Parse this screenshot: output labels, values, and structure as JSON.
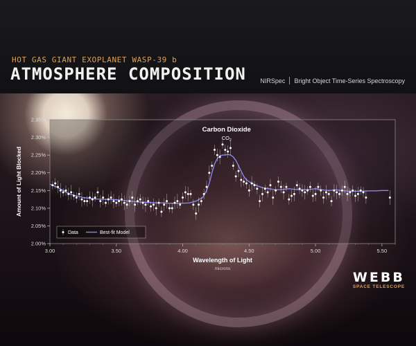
{
  "header": {
    "sup_title": "HOT GAS GIANT EXOPLANET WASP-39 b",
    "main_title": "ATMOSPHERE COMPOSITION",
    "instrument": "NIRSpec",
    "mode": "Bright Object Time-Series Spectroscopy"
  },
  "logo": {
    "name": "WEBB",
    "sub": "SPACE TELESCOPE"
  },
  "colors": {
    "accent": "#e0a054",
    "model_line": "#8a86e8",
    "data_points": "#ffffff",
    "axis_text": "#dddddd"
  },
  "chart_data": {
    "type": "scatter",
    "title": "",
    "xlabel": "Wavelength of Light",
    "xunit": "microns",
    "ylabel": "Amount of Light Blocked",
    "xlim": [
      3.0,
      5.6
    ],
    "ylim": [
      2.0,
      2.35
    ],
    "x_ticks": [
      "3.00",
      "3.50",
      "4.00",
      "4.50",
      "5.00",
      "5.50"
    ],
    "y_ticks": [
      "2.00%",
      "2.05%",
      "2.10%",
      "2.15%",
      "2.20%",
      "2.25%",
      "2.30%",
      "2.35%"
    ],
    "annotation": {
      "label": "Carbon Dioxide",
      "formula": "CO",
      "subscript": "2",
      "x": 4.33
    },
    "legend": {
      "placement": "bottom-left",
      "data_label": "Data",
      "model_label": "Best-fit Model"
    },
    "series": [
      {
        "name": "Data",
        "x": [
          3.02,
          3.04,
          3.06,
          3.08,
          3.1,
          3.12,
          3.14,
          3.16,
          3.18,
          3.2,
          3.22,
          3.24,
          3.26,
          3.28,
          3.3,
          3.32,
          3.34,
          3.36,
          3.38,
          3.4,
          3.42,
          3.44,
          3.46,
          3.48,
          3.5,
          3.52,
          3.54,
          3.56,
          3.58,
          3.6,
          3.62,
          3.64,
          3.66,
          3.68,
          3.7,
          3.72,
          3.74,
          3.76,
          3.78,
          3.8,
          3.82,
          3.84,
          3.86,
          3.88,
          3.9,
          3.92,
          3.94,
          3.96,
          3.98,
          4.0,
          4.02,
          4.04,
          4.06,
          4.08,
          4.1,
          4.12,
          4.14,
          4.16,
          4.18,
          4.2,
          4.22,
          4.24,
          4.26,
          4.28,
          4.3,
          4.32,
          4.34,
          4.36,
          4.38,
          4.4,
          4.42,
          4.44,
          4.46,
          4.48,
          4.5,
          4.52,
          4.54,
          4.56,
          4.58,
          4.6,
          4.62,
          4.64,
          4.66,
          4.68,
          4.7,
          4.72,
          4.74,
          4.76,
          4.78,
          4.8,
          4.82,
          4.84,
          4.86,
          4.88,
          4.9,
          4.92,
          4.94,
          4.96,
          4.98,
          5.0,
          5.02,
          5.04,
          5.06,
          5.08,
          5.1,
          5.12,
          5.14,
          5.16,
          5.18,
          5.2,
          5.22,
          5.24,
          5.26,
          5.28,
          5.3,
          5.32,
          5.34,
          5.36,
          5.38,
          5.56
        ],
        "y": [
          2.165,
          2.17,
          2.16,
          2.15,
          2.145,
          2.15,
          2.14,
          2.145,
          2.135,
          2.13,
          2.14,
          2.125,
          2.12,
          2.12,
          2.13,
          2.125,
          2.13,
          2.145,
          2.12,
          2.13,
          2.115,
          2.125,
          2.13,
          2.12,
          2.115,
          2.12,
          2.125,
          2.115,
          2.11,
          2.12,
          2.13,
          2.11,
          2.12,
          2.125,
          2.115,
          2.11,
          2.12,
          2.105,
          2.11,
          2.1,
          2.115,
          2.09,
          2.11,
          2.12,
          2.1,
          2.1,
          2.115,
          2.12,
          2.11,
          2.13,
          2.145,
          2.14,
          2.14,
          2.11,
          2.085,
          2.11,
          2.12,
          2.14,
          2.16,
          2.2,
          2.22,
          2.265,
          2.25,
          2.245,
          2.28,
          2.265,
          2.26,
          2.27,
          2.22,
          2.19,
          2.205,
          2.18,
          2.175,
          2.17,
          2.15,
          2.17,
          2.165,
          2.155,
          2.12,
          2.14,
          2.155,
          2.145,
          2.165,
          2.13,
          2.15,
          2.175,
          2.16,
          2.145,
          2.16,
          2.125,
          2.135,
          2.14,
          2.165,
          2.155,
          2.15,
          2.145,
          2.15,
          2.16,
          2.135,
          2.14,
          2.16,
          2.15,
          2.13,
          2.145,
          2.14,
          2.12,
          2.15,
          2.145,
          2.14,
          2.15,
          2.16,
          2.14,
          2.145,
          2.15,
          2.135,
          2.14,
          2.15,
          2.145,
          2.13,
          2.13
        ]
      },
      {
        "name": "Best-fit Model",
        "x": [
          3.0,
          3.05,
          3.1,
          3.15,
          3.2,
          3.25,
          3.3,
          3.35,
          3.4,
          3.45,
          3.5,
          3.55,
          3.6,
          3.65,
          3.7,
          3.75,
          3.8,
          3.85,
          3.9,
          3.95,
          4.0,
          4.05,
          4.1,
          4.15,
          4.18,
          4.2,
          4.22,
          4.24,
          4.26,
          4.28,
          4.3,
          4.32,
          4.34,
          4.36,
          4.38,
          4.4,
          4.42,
          4.44,
          4.46,
          4.48,
          4.5,
          4.55,
          4.6,
          4.65,
          4.7,
          4.75,
          4.8,
          4.85,
          4.9,
          4.95,
          5.0,
          5.05,
          5.1,
          5.15,
          5.2,
          5.25,
          5.3,
          5.35,
          5.4,
          5.45,
          5.5,
          5.55
        ],
        "y": [
          2.168,
          2.16,
          2.15,
          2.14,
          2.135,
          2.13,
          2.128,
          2.126,
          2.125,
          2.125,
          2.124,
          2.122,
          2.12,
          2.118,
          2.117,
          2.116,
          2.115,
          2.115,
          2.114,
          2.114,
          2.114,
          2.115,
          2.12,
          2.13,
          2.15,
          2.17,
          2.2,
          2.225,
          2.24,
          2.248,
          2.25,
          2.25,
          2.252,
          2.25,
          2.245,
          2.235,
          2.22,
          2.205,
          2.19,
          2.18,
          2.175,
          2.165,
          2.158,
          2.155,
          2.152,
          2.153,
          2.155,
          2.153,
          2.152,
          2.153,
          2.155,
          2.152,
          2.15,
          2.152,
          2.15,
          2.148,
          2.148,
          2.148,
          2.149,
          2.149,
          2.15,
          2.15
        ]
      }
    ]
  }
}
